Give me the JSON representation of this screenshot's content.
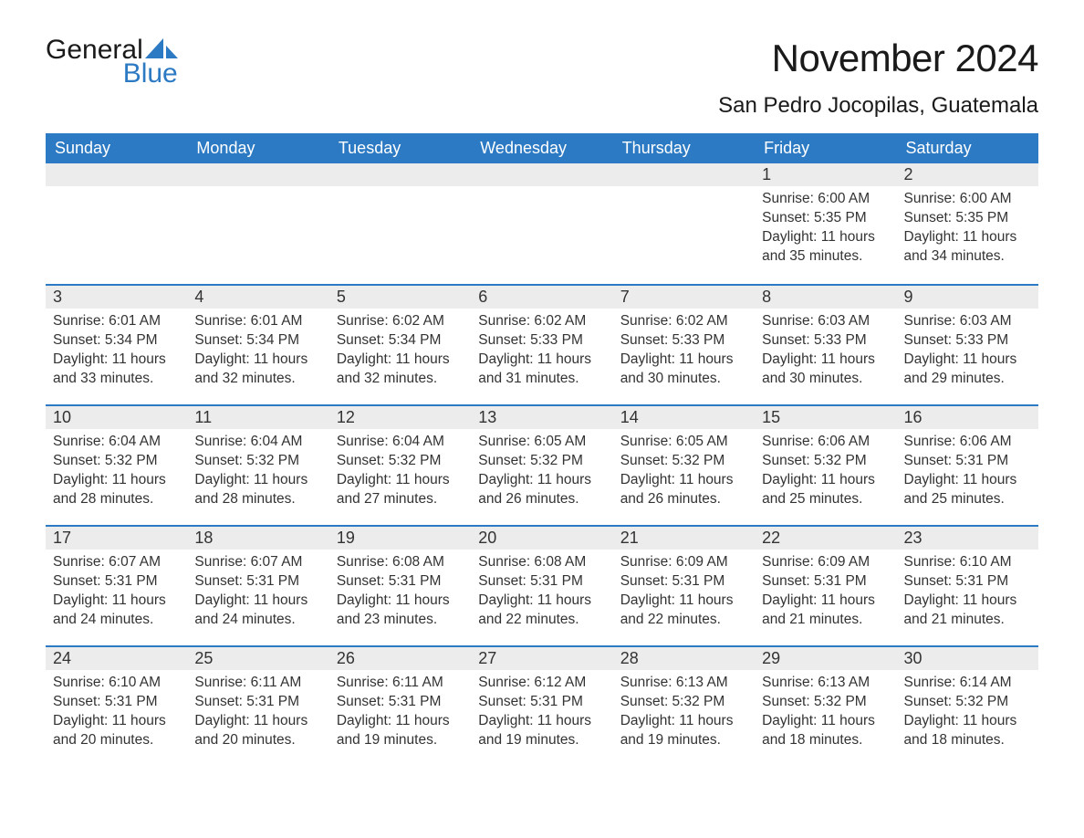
{
  "logo": {
    "text1": "General",
    "text2": "Blue",
    "text_color": "#1a1a1a",
    "accent_color": "#2c7ac3"
  },
  "title": "November 2024",
  "location": "San Pedro Jocopilas, Guatemala",
  "colors": {
    "header_bg": "#2c7ac3",
    "header_text": "#ffffff",
    "daynum_bg": "#ececec",
    "border_top": "#2c7ac3",
    "body_text": "#333333",
    "background": "#ffffff"
  },
  "typography": {
    "title_fontsize": 42,
    "location_fontsize": 24,
    "dayheader_fontsize": 18,
    "daynum_fontsize": 18,
    "body_fontsize": 15.5,
    "font_family": "Arial, Helvetica, sans-serif"
  },
  "day_headers": [
    "Sunday",
    "Monday",
    "Tuesday",
    "Wednesday",
    "Thursday",
    "Friday",
    "Saturday"
  ],
  "weeks": [
    [
      {
        "empty": true
      },
      {
        "empty": true
      },
      {
        "empty": true
      },
      {
        "empty": true
      },
      {
        "empty": true
      },
      {
        "num": "1",
        "sunrise": "Sunrise: 6:00 AM",
        "sunset": "Sunset: 5:35 PM",
        "daylight": "Daylight: 11 hours and 35 minutes."
      },
      {
        "num": "2",
        "sunrise": "Sunrise: 6:00 AM",
        "sunset": "Sunset: 5:35 PM",
        "daylight": "Daylight: 11 hours and 34 minutes."
      }
    ],
    [
      {
        "num": "3",
        "sunrise": "Sunrise: 6:01 AM",
        "sunset": "Sunset: 5:34 PM",
        "daylight": "Daylight: 11 hours and 33 minutes."
      },
      {
        "num": "4",
        "sunrise": "Sunrise: 6:01 AM",
        "sunset": "Sunset: 5:34 PM",
        "daylight": "Daylight: 11 hours and 32 minutes."
      },
      {
        "num": "5",
        "sunrise": "Sunrise: 6:02 AM",
        "sunset": "Sunset: 5:34 PM",
        "daylight": "Daylight: 11 hours and 32 minutes."
      },
      {
        "num": "6",
        "sunrise": "Sunrise: 6:02 AM",
        "sunset": "Sunset: 5:33 PM",
        "daylight": "Daylight: 11 hours and 31 minutes."
      },
      {
        "num": "7",
        "sunrise": "Sunrise: 6:02 AM",
        "sunset": "Sunset: 5:33 PM",
        "daylight": "Daylight: 11 hours and 30 minutes."
      },
      {
        "num": "8",
        "sunrise": "Sunrise: 6:03 AM",
        "sunset": "Sunset: 5:33 PM",
        "daylight": "Daylight: 11 hours and 30 minutes."
      },
      {
        "num": "9",
        "sunrise": "Sunrise: 6:03 AM",
        "sunset": "Sunset: 5:33 PM",
        "daylight": "Daylight: 11 hours and 29 minutes."
      }
    ],
    [
      {
        "num": "10",
        "sunrise": "Sunrise: 6:04 AM",
        "sunset": "Sunset: 5:32 PM",
        "daylight": "Daylight: 11 hours and 28 minutes."
      },
      {
        "num": "11",
        "sunrise": "Sunrise: 6:04 AM",
        "sunset": "Sunset: 5:32 PM",
        "daylight": "Daylight: 11 hours and 28 minutes."
      },
      {
        "num": "12",
        "sunrise": "Sunrise: 6:04 AM",
        "sunset": "Sunset: 5:32 PM",
        "daylight": "Daylight: 11 hours and 27 minutes."
      },
      {
        "num": "13",
        "sunrise": "Sunrise: 6:05 AM",
        "sunset": "Sunset: 5:32 PM",
        "daylight": "Daylight: 11 hours and 26 minutes."
      },
      {
        "num": "14",
        "sunrise": "Sunrise: 6:05 AM",
        "sunset": "Sunset: 5:32 PM",
        "daylight": "Daylight: 11 hours and 26 minutes."
      },
      {
        "num": "15",
        "sunrise": "Sunrise: 6:06 AM",
        "sunset": "Sunset: 5:32 PM",
        "daylight": "Daylight: 11 hours and 25 minutes."
      },
      {
        "num": "16",
        "sunrise": "Sunrise: 6:06 AM",
        "sunset": "Sunset: 5:31 PM",
        "daylight": "Daylight: 11 hours and 25 minutes."
      }
    ],
    [
      {
        "num": "17",
        "sunrise": "Sunrise: 6:07 AM",
        "sunset": "Sunset: 5:31 PM",
        "daylight": "Daylight: 11 hours and 24 minutes."
      },
      {
        "num": "18",
        "sunrise": "Sunrise: 6:07 AM",
        "sunset": "Sunset: 5:31 PM",
        "daylight": "Daylight: 11 hours and 24 minutes."
      },
      {
        "num": "19",
        "sunrise": "Sunrise: 6:08 AM",
        "sunset": "Sunset: 5:31 PM",
        "daylight": "Daylight: 11 hours and 23 minutes."
      },
      {
        "num": "20",
        "sunrise": "Sunrise: 6:08 AM",
        "sunset": "Sunset: 5:31 PM",
        "daylight": "Daylight: 11 hours and 22 minutes."
      },
      {
        "num": "21",
        "sunrise": "Sunrise: 6:09 AM",
        "sunset": "Sunset: 5:31 PM",
        "daylight": "Daylight: 11 hours and 22 minutes."
      },
      {
        "num": "22",
        "sunrise": "Sunrise: 6:09 AM",
        "sunset": "Sunset: 5:31 PM",
        "daylight": "Daylight: 11 hours and 21 minutes."
      },
      {
        "num": "23",
        "sunrise": "Sunrise: 6:10 AM",
        "sunset": "Sunset: 5:31 PM",
        "daylight": "Daylight: 11 hours and 21 minutes."
      }
    ],
    [
      {
        "num": "24",
        "sunrise": "Sunrise: 6:10 AM",
        "sunset": "Sunset: 5:31 PM",
        "daylight": "Daylight: 11 hours and 20 minutes."
      },
      {
        "num": "25",
        "sunrise": "Sunrise: 6:11 AM",
        "sunset": "Sunset: 5:31 PM",
        "daylight": "Daylight: 11 hours and 20 minutes."
      },
      {
        "num": "26",
        "sunrise": "Sunrise: 6:11 AM",
        "sunset": "Sunset: 5:31 PM",
        "daylight": "Daylight: 11 hours and 19 minutes."
      },
      {
        "num": "27",
        "sunrise": "Sunrise: 6:12 AM",
        "sunset": "Sunset: 5:31 PM",
        "daylight": "Daylight: 11 hours and 19 minutes."
      },
      {
        "num": "28",
        "sunrise": "Sunrise: 6:13 AM",
        "sunset": "Sunset: 5:32 PM",
        "daylight": "Daylight: 11 hours and 19 minutes."
      },
      {
        "num": "29",
        "sunrise": "Sunrise: 6:13 AM",
        "sunset": "Sunset: 5:32 PM",
        "daylight": "Daylight: 11 hours and 18 minutes."
      },
      {
        "num": "30",
        "sunrise": "Sunrise: 6:14 AM",
        "sunset": "Sunset: 5:32 PM",
        "daylight": "Daylight: 11 hours and 18 minutes."
      }
    ]
  ]
}
